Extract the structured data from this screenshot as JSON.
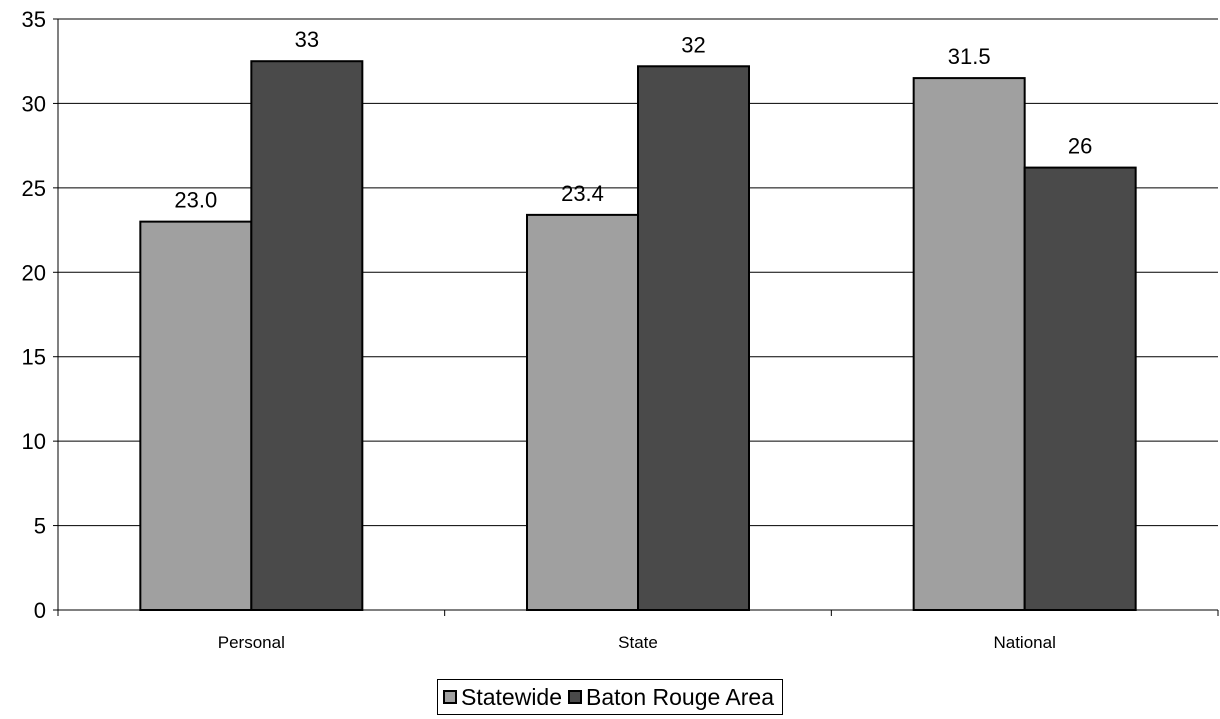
{
  "chart_data": {
    "type": "bar",
    "categories": [
      "Personal",
      "State",
      "National"
    ],
    "series": [
      {
        "name": "Statewide",
        "values": [
          23.0,
          23.4,
          31.5
        ],
        "labels": [
          "23.0",
          "23.4",
          "31.5"
        ],
        "color": "#a0a0a0"
      },
      {
        "name": "Baton Rouge Area",
        "values": [
          32.5,
          32.2,
          26.2
        ],
        "labels": [
          "33",
          "32",
          "26"
        ],
        "color": "#4a4a4a"
      }
    ],
    "yticks": [
      "0",
      "5",
      "10",
      "15",
      "20",
      "25",
      "30",
      "35"
    ],
    "ylim": [
      0,
      35
    ],
    "grid": true,
    "legend_position": "bottom"
  }
}
